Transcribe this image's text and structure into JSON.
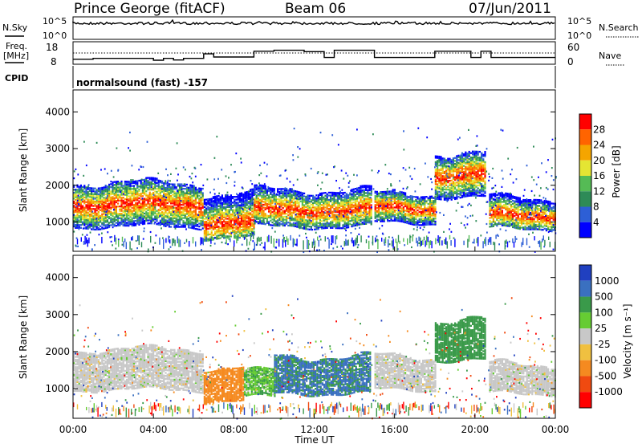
{
  "header": {
    "station": "Prince George (fitACF)",
    "beam": "Beam 06",
    "date": "07/Jun/2011"
  },
  "status_panels": {
    "nsky_label": "N.Sky",
    "nsearch_label": "N.Search",
    "log_ticks": [
      "10^5",
      "10^0"
    ],
    "freq_label_line1": "Freq.",
    "freq_label_line2": "[MHz]",
    "freq_ticks": [
      "18",
      "8"
    ],
    "nave_label": "Nave",
    "nave_ticks": [
      "60",
      "0"
    ],
    "cpid_label": "CPID",
    "cpid_text": "normalsound (fast) -157",
    "freq_mhz_steps": [
      [
        0,
        10.2
      ],
      [
        1.0,
        10.6
      ],
      [
        4.0,
        9.8
      ],
      [
        4.5,
        10.6
      ],
      [
        5.0,
        9.9
      ],
      [
        5.5,
        10.6
      ],
      [
        6.5,
        12.6
      ],
      [
        7.0,
        11.2
      ],
      [
        9.0,
        13.8
      ],
      [
        10.0,
        14.2
      ],
      [
        11.5,
        13.6
      ],
      [
        12.5,
        11.0
      ],
      [
        13.0,
        14.2
      ],
      [
        15.0,
        11.0
      ],
      [
        18.0,
        13.8
      ],
      [
        19.8,
        11.0
      ],
      [
        20.3,
        13.8
      ],
      [
        20.8,
        11.0
      ],
      [
        24.0,
        11.0
      ]
    ],
    "nave_dotted_level": 30
  },
  "chart_data": [
    {
      "type": "heatmap",
      "panel": "power",
      "ylabel": "Slant Range [km]",
      "ylim": [
        200,
        4600
      ],
      "yticks": [
        1000,
        2000,
        3000,
        4000
      ],
      "xlim": [
        0,
        24
      ],
      "colorbar": {
        "label": "Power [dB]",
        "ticks": [
          4,
          8,
          12,
          16,
          20,
          24,
          28
        ],
        "range": [
          0,
          32
        ],
        "colors": [
          "#0000ff",
          "#2d5fd6",
          "#2e8b57",
          "#55bb55",
          "#e5e533",
          "#f5a500",
          "#ff6400",
          "#ff0000"
        ]
      },
      "echo_regions": [
        {
          "x0": 0.0,
          "x1": 6.5,
          "ylo": 900,
          "yhi": 2100,
          "core": 1500
        },
        {
          "x0": 6.5,
          "x1": 9.0,
          "ylo": 600,
          "yhi": 1800,
          "core": 1000
        },
        {
          "x0": 9.0,
          "x1": 14.8,
          "ylo": 900,
          "yhi": 1900,
          "core": 1350
        },
        {
          "x0": 15.0,
          "x1": 18.0,
          "ylo": 1000,
          "yhi": 1800,
          "core": 1400
        },
        {
          "x0": 18.0,
          "x1": 20.5,
          "ylo": 1700,
          "yhi": 2900,
          "core": 2300
        },
        {
          "x0": 20.7,
          "x1": 24.0,
          "ylo": 850,
          "yhi": 1700,
          "core": 1200
        }
      ]
    },
    {
      "type": "heatmap",
      "panel": "velocity",
      "ylabel": "Slant Range [km]",
      "xlabel": "Time UT",
      "ylim": [
        200,
        4600
      ],
      "yticks": [
        1000,
        2000,
        3000,
        4000
      ],
      "xlim": [
        0,
        24
      ],
      "xticks": [
        "00:00",
        "04:00",
        "08:00",
        "12:00",
        "16:00",
        "20:00",
        "00:00"
      ],
      "colorbar": {
        "label": "Velocity [m s⁻¹]",
        "ticks": [
          "1000",
          "500",
          "100",
          "25",
          "-25",
          "-100",
          "-500",
          "-1000"
        ],
        "colors": [
          "#2040c0",
          "#3a70c0",
          "#3a9a4a",
          "#66cc33",
          "#c8c8c8",
          "#f0c040",
          "#f58a20",
          "#f04a10",
          "#ff0000"
        ]
      },
      "velocity_regions": [
        {
          "x0": 0.0,
          "x1": 6.5,
          "ylo": 1000,
          "yhi": 2100,
          "v": 0
        },
        {
          "x0": 6.5,
          "x1": 8.5,
          "ylo": 700,
          "yhi": 1600,
          "v": -300
        },
        {
          "x0": 8.5,
          "x1": 10.0,
          "ylo": 800,
          "yhi": 1500,
          "v": 80
        },
        {
          "x0": 10.0,
          "x1": 14.8,
          "ylo": 900,
          "yhi": 1900,
          "v": 600
        },
        {
          "x0": 15.0,
          "x1": 18.0,
          "ylo": 1000,
          "yhi": 1900,
          "v": 0
        },
        {
          "x0": 18.0,
          "x1": 20.5,
          "ylo": 1800,
          "yhi": 2900,
          "v": 300
        },
        {
          "x0": 20.7,
          "x1": 24.0,
          "ylo": 900,
          "yhi": 1700,
          "v": 0
        }
      ]
    }
  ]
}
